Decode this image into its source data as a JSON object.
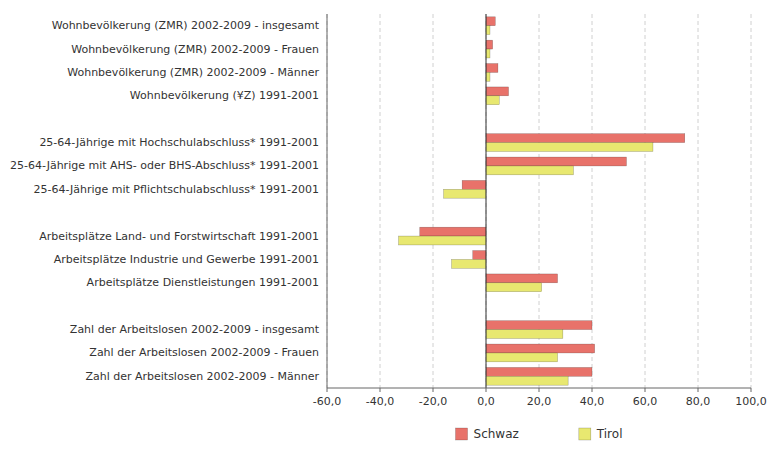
{
  "chart_data": {
    "type": "bar",
    "orientation": "horizontal",
    "categories": [
      "Wohnbevölkerung (ZMR) 2002-2009 - insgesamt",
      "Wohnbevölkerung (ZMR) 2002-2009 - Frauen",
      "Wohnbevölkerung (ZMR) 2002-2009 - Männer",
      "Wohnbevölkerung (¥Z) 1991-2001",
      null,
      "25-64-Jährige mit Hochschulabschluss* 1991-2001",
      "25-64-Jährige mit AHS- oder BHS-Abschluss* 1991-2001",
      "25-64-Jährige mit Pflichtschulabschluss* 1991-2001",
      null,
      "Arbeitsplätze Land- und Forstwirtschaft 1991-2001",
      "Arbeitsplätze Industrie und Gewerbe 1991-2001",
      "Arbeitsplätze Dienstleistungen 1991-2001",
      null,
      "Zahl der Arbeitslosen 2002-2009 - insgesamt",
      "Zahl der Arbeitslosen 2002-2009 - Frauen",
      "Zahl der Arbeitslosen 2002-2009 - Männer"
    ],
    "series": [
      {
        "name": "Schwaz",
        "color": "#E8726A",
        "values": [
          3.5,
          2.5,
          4.5,
          8.5,
          null,
          75.0,
          53.0,
          -9.0,
          null,
          -25.0,
          -5.0,
          27.0,
          null,
          40.0,
          41.0,
          40.0
        ]
      },
      {
        "name": "Tirol",
        "color": "#E8E870",
        "values": [
          1.5,
          1.5,
          1.5,
          5.0,
          null,
          63.0,
          33.0,
          -16.0,
          null,
          -33.0,
          -13.0,
          21.0,
          null,
          29.0,
          27.0,
          31.0
        ]
      }
    ],
    "xlim": [
      -60,
      100
    ],
    "xticks": [
      {
        "value": -60,
        "label": "-60,0"
      },
      {
        "value": -40,
        "label": "-40,0"
      },
      {
        "value": -20,
        "label": "-20,0"
      },
      {
        "value": 0,
        "label": "0,0"
      },
      {
        "value": 20,
        "label": "20,0"
      },
      {
        "value": 40,
        "label": "40,0"
      },
      {
        "value": 60,
        "label": "60,0"
      },
      {
        "value": 80,
        "label": "80,0"
      },
      {
        "value": 100,
        "label": "100,0"
      }
    ],
    "grid": true,
    "legend": "bottom"
  }
}
